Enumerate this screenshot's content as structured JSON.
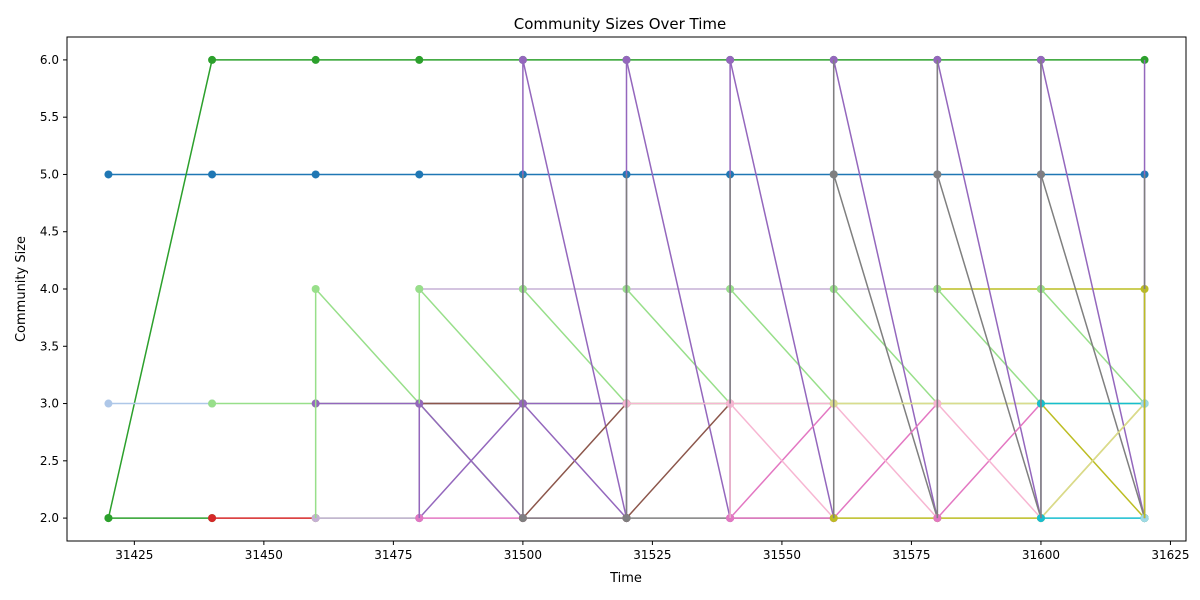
{
  "chart_data": {
    "type": "line",
    "title": "Community Sizes Over Time",
    "xlabel": "Time",
    "ylabel": "Community Size",
    "xlim": [
      31412,
      31628
    ],
    "ylim": [
      1.8,
      6.2
    ],
    "xticks": [
      31425,
      31450,
      31475,
      31500,
      31525,
      31550,
      31575,
      31600,
      31625
    ],
    "yticks": [
      2.0,
      2.5,
      3.0,
      3.5,
      4.0,
      4.5,
      5.0,
      5.5,
      6.0
    ],
    "x": [
      31420,
      31440,
      31460,
      31480,
      31500,
      31520,
      31540,
      31560,
      31580,
      31600,
      31620
    ],
    "grid": false,
    "series": [
      {
        "color": "#1f77b4",
        "values": [
          5,
          5,
          5,
          5,
          5,
          5,
          5,
          5,
          5,
          5,
          5
        ]
      },
      {
        "color": "#2ca02c",
        "values": [
          2,
          6,
          6,
          6,
          6,
          6,
          6,
          6,
          6,
          6,
          6
        ]
      },
      {
        "color": "#aec7e8",
        "values": [
          3,
          3,
          null,
          null,
          null,
          null,
          null,
          null,
          null,
          null,
          null
        ]
      },
      {
        "color": "#2ca02c",
        "values": [
          2,
          2,
          null,
          null,
          null,
          null,
          null,
          null,
          null,
          null,
          null
        ]
      },
      {
        "color": "#d62728",
        "values": [
          null,
          2,
          2,
          null,
          null,
          null,
          null,
          null,
          null,
          null,
          null
        ]
      },
      {
        "color": "#98df8a",
        "values": [
          null,
          3,
          3,
          3,
          3,
          3,
          3,
          3,
          3,
          3,
          3
        ]
      },
      {
        "color": "#98df8a",
        "values": [
          null,
          null,
          4,
          3,
          2,
          null,
          null,
          null,
          null,
          null,
          null
        ]
      },
      {
        "color": "#98df8a",
        "values": [
          null,
          null,
          2,
          2,
          null,
          null,
          null,
          null,
          null,
          null,
          null
        ]
      },
      {
        "color": "#9467bd",
        "values": [
          null,
          null,
          3,
          3,
          3,
          3,
          null,
          null,
          null,
          null,
          null
        ]
      },
      {
        "color": "#c5b0d5",
        "values": [
          null,
          null,
          2,
          2,
          null,
          null,
          null,
          null,
          null,
          null,
          null
        ]
      },
      {
        "color": "#c5b0d5",
        "values": [
          null,
          null,
          null,
          4,
          4,
          4,
          4,
          4,
          4,
          null,
          null
        ]
      },
      {
        "color": "#98df8a",
        "values": [
          null,
          null,
          null,
          4,
          3,
          null,
          null,
          null,
          null,
          null,
          null
        ]
      },
      {
        "color": "#8c564b",
        "values": [
          null,
          null,
          null,
          3,
          3,
          null,
          null,
          null,
          null,
          null,
          null
        ]
      },
      {
        "color": "#9467bd",
        "values": [
          null,
          null,
          null,
          2,
          3,
          null,
          null,
          null,
          null,
          null,
          null
        ]
      },
      {
        "color": "#9467bd",
        "values": [
          null,
          null,
          null,
          3,
          2,
          null,
          null,
          null,
          null,
          null,
          null
        ]
      },
      {
        "color": "#e377c2",
        "values": [
          null,
          null,
          null,
          2,
          2,
          2,
          null,
          null,
          null,
          null,
          null
        ]
      },
      {
        "color": "#98df8a",
        "values": [
          null,
          null,
          null,
          null,
          4,
          3,
          3,
          null,
          null,
          null,
          null
        ]
      },
      {
        "color": "#9467bd",
        "values": [
          null,
          null,
          null,
          null,
          6,
          2,
          null,
          null,
          null,
          null,
          null
        ]
      },
      {
        "color": "#8c564b",
        "values": [
          null,
          null,
          null,
          null,
          2,
          3,
          null,
          null,
          null,
          null,
          null
        ]
      },
      {
        "color": "#9467bd",
        "values": [
          null,
          null,
          null,
          null,
          3,
          2,
          null,
          null,
          null,
          null,
          null
        ]
      },
      {
        "color": "#7f7f7f",
        "values": [
          null,
          null,
          null,
          null,
          2,
          2,
          null,
          null,
          null,
          null,
          null
        ]
      },
      {
        "color": "#98df8a",
        "values": [
          null,
          null,
          null,
          null,
          null,
          4,
          3,
          null,
          null,
          null,
          null
        ]
      },
      {
        "color": "#9467bd",
        "values": [
          null,
          null,
          null,
          null,
          null,
          6,
          2,
          null,
          null,
          null,
          null
        ]
      },
      {
        "color": "#8c564b",
        "values": [
          null,
          null,
          null,
          null,
          null,
          2,
          3,
          null,
          null,
          null,
          null
        ]
      },
      {
        "color": "#f7b6d2",
        "values": [
          null,
          null,
          null,
          null,
          null,
          3,
          3,
          3,
          null,
          null,
          null
        ]
      },
      {
        "color": "#7f7f7f",
        "values": [
          null,
          null,
          null,
          null,
          null,
          2,
          2,
          2,
          null,
          null,
          null
        ]
      },
      {
        "color": "#98df8a",
        "values": [
          null,
          null,
          null,
          null,
          null,
          null,
          4,
          3,
          null,
          null,
          null
        ]
      },
      {
        "color": "#9467bd",
        "values": [
          null,
          null,
          null,
          null,
          null,
          null,
          6,
          2,
          null,
          null,
          null
        ]
      },
      {
        "color": "#e377c2",
        "values": [
          null,
          null,
          null,
          null,
          null,
          null,
          2,
          3,
          null,
          null,
          null
        ]
      },
      {
        "color": "#f7b6d2",
        "values": [
          null,
          null,
          null,
          null,
          null,
          null,
          3,
          2,
          null,
          null,
          null
        ]
      },
      {
        "color": "#e377c2",
        "values": [
          null,
          null,
          null,
          null,
          null,
          null,
          2,
          2,
          null,
          null,
          null
        ]
      },
      {
        "color": "#98df8a",
        "values": [
          null,
          null,
          null,
          null,
          null,
          null,
          null,
          4,
          3,
          null,
          null
        ]
      },
      {
        "color": "#9467bd",
        "values": [
          null,
          null,
          null,
          null,
          null,
          null,
          null,
          6,
          2,
          null,
          null
        ]
      },
      {
        "color": "#7f7f7f",
        "values": [
          null,
          null,
          null,
          null,
          null,
          null,
          null,
          5,
          2,
          null,
          null
        ]
      },
      {
        "color": "#e377c2",
        "values": [
          null,
          null,
          null,
          null,
          null,
          null,
          null,
          2,
          3,
          null,
          null
        ]
      },
      {
        "color": "#f7b6d2",
        "values": [
          null,
          null,
          null,
          null,
          null,
          null,
          null,
          3,
          2,
          null,
          null
        ]
      },
      {
        "color": "#dbdb8d",
        "values": [
          null,
          null,
          null,
          null,
          null,
          null,
          null,
          3,
          3,
          3,
          null
        ]
      },
      {
        "color": "#bcbd22",
        "values": [
          null,
          null,
          null,
          null,
          null,
          null,
          null,
          2,
          2,
          2,
          null
        ]
      },
      {
        "color": "#bcbd22",
        "values": [
          null,
          null,
          null,
          null,
          null,
          null,
          null,
          null,
          4,
          4,
          4
        ]
      },
      {
        "color": "#98df8a",
        "values": [
          null,
          null,
          null,
          null,
          null,
          null,
          null,
          null,
          4,
          3,
          null
        ]
      },
      {
        "color": "#9467bd",
        "values": [
          null,
          null,
          null,
          null,
          null,
          null,
          null,
          null,
          6,
          2,
          null
        ]
      },
      {
        "color": "#7f7f7f",
        "values": [
          null,
          null,
          null,
          null,
          null,
          null,
          null,
          null,
          5,
          2,
          null
        ]
      },
      {
        "color": "#e377c2",
        "values": [
          null,
          null,
          null,
          null,
          null,
          null,
          null,
          null,
          2,
          3,
          null
        ]
      },
      {
        "color": "#f7b6d2",
        "values": [
          null,
          null,
          null,
          null,
          null,
          null,
          null,
          null,
          3,
          2,
          null
        ]
      },
      {
        "color": "#98df8a",
        "values": [
          null,
          null,
          null,
          null,
          null,
          null,
          null,
          null,
          null,
          4,
          3
        ]
      },
      {
        "color": "#9467bd",
        "values": [
          null,
          null,
          null,
          null,
          null,
          null,
          null,
          null,
          null,
          6,
          2
        ]
      },
      {
        "color": "#7f7f7f",
        "values": [
          null,
          null,
          null,
          null,
          null,
          null,
          null,
          null,
          null,
          5,
          2
        ]
      },
      {
        "color": "#bcbd22",
        "values": [
          null,
          null,
          null,
          null,
          null,
          null,
          null,
          null,
          null,
          3,
          2
        ]
      },
      {
        "color": "#bcbd22",
        "values": [
          null,
          null,
          null,
          null,
          null,
          null,
          null,
          null,
          null,
          2,
          3
        ]
      },
      {
        "color": "#dbdb8d",
        "values": [
          null,
          null,
          null,
          null,
          null,
          null,
          null,
          null,
          null,
          2,
          3
        ]
      },
      {
        "color": "#17becf",
        "values": [
          null,
          null,
          null,
          null,
          null,
          null,
          null,
          null,
          null,
          3,
          3
        ]
      },
      {
        "color": "#17becf",
        "values": [
          null,
          null,
          null,
          null,
          null,
          null,
          null,
          null,
          null,
          2,
          2
        ]
      },
      {
        "color": "#9edae5",
        "values": [
          null,
          null,
          null,
          null,
          null,
          null,
          null,
          null,
          null,
          null,
          2
        ]
      },
      {
        "color": "#9edae5",
        "values": [
          null,
          null,
          null,
          null,
          null,
          null,
          null,
          null,
          null,
          null,
          3
        ]
      }
    ],
    "vertical_links": [
      {
        "x": 31460,
        "color": "#98df8a",
        "from": 2,
        "to": 4
      },
      {
        "x": 31480,
        "color": "#98df8a",
        "from": 2,
        "to": 4
      },
      {
        "x": 31480,
        "color": "#9467bd",
        "from": 2,
        "to": 3
      },
      {
        "x": 31500,
        "color": "#9467bd",
        "from": 2,
        "to": 6
      },
      {
        "x": 31500,
        "color": "#7f7f7f",
        "from": 2,
        "to": 5
      },
      {
        "x": 31520,
        "color": "#9467bd",
        "from": 2,
        "to": 6
      },
      {
        "x": 31520,
        "color": "#7f7f7f",
        "from": 2,
        "to": 5
      },
      {
        "x": 31540,
        "color": "#9467bd",
        "from": 2,
        "to": 6
      },
      {
        "x": 31540,
        "color": "#7f7f7f",
        "from": 2,
        "to": 5
      },
      {
        "x": 31540,
        "color": "#f7b6d2",
        "from": 2,
        "to": 3
      },
      {
        "x": 31560,
        "color": "#9467bd",
        "from": 2,
        "to": 6
      },
      {
        "x": 31560,
        "color": "#7f7f7f",
        "from": 2,
        "to": 6
      },
      {
        "x": 31580,
        "color": "#9467bd",
        "from": 2,
        "to": 6
      },
      {
        "x": 31580,
        "color": "#7f7f7f",
        "from": 2,
        "to": 6
      },
      {
        "x": 31600,
        "color": "#9467bd",
        "from": 2,
        "to": 6
      },
      {
        "x": 31600,
        "color": "#7f7f7f",
        "from": 2,
        "to": 6
      },
      {
        "x": 31620,
        "color": "#9467bd",
        "from": 2,
        "to": 6
      },
      {
        "x": 31620,
        "color": "#7f7f7f",
        "from": 2,
        "to": 5
      },
      {
        "x": 31620,
        "color": "#bcbd22",
        "from": 2,
        "to": 4
      }
    ]
  }
}
